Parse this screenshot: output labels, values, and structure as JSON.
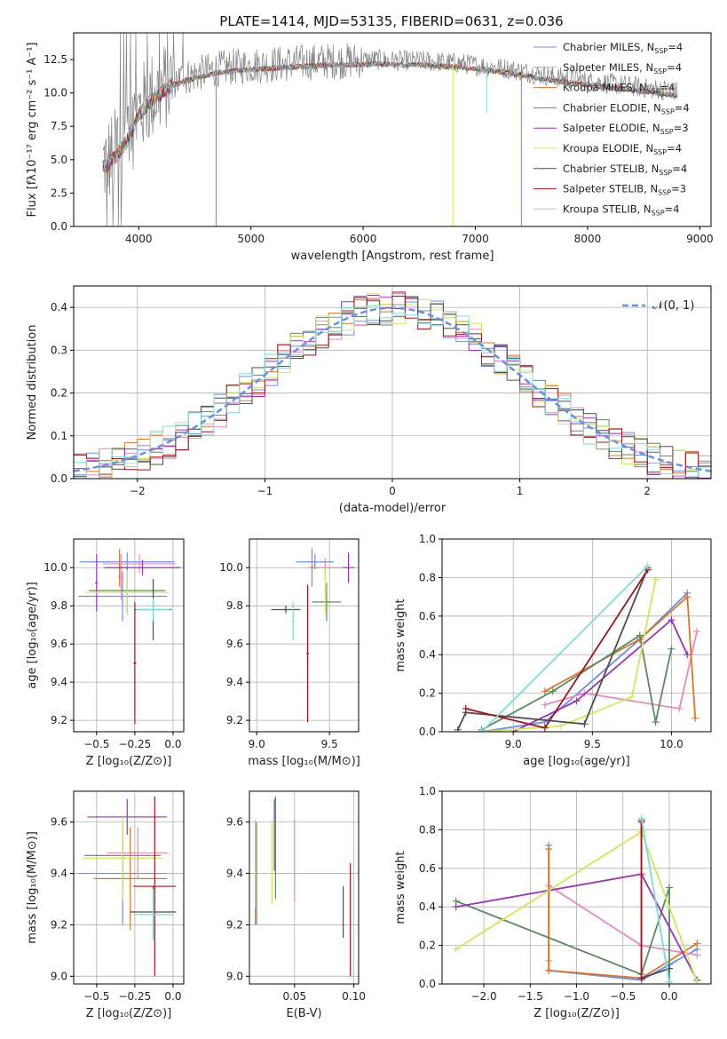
{
  "figure": {
    "title": "PLATE=1414, MJD=53135, FIBERID=0631, z=0.036"
  },
  "series_styles": [
    {
      "name": "Chabrier MILES, N$_{SSP}$=4",
      "label": "Chabrier MILES, N",
      "sub": "SSP",
      "suffix": "=4",
      "color": "#6b8fe6"
    },
    {
      "name": "Salpeter MILES, N$_{SSP}$=4",
      "label": "Salpeter MILES, N",
      "sub": "SSP",
      "suffix": "=4",
      "color": "#e68ac0"
    },
    {
      "name": "Kroupa MILES, N$_{SSP}$=4",
      "label": "Kroupa MILES, N",
      "sub": "SSP",
      "suffix": "=4",
      "color": "#d9762b"
    },
    {
      "name": "Chabrier ELODIE, N$_{SSP}$=4",
      "label": "Chabrier ELODIE, N",
      "sub": "SSP",
      "suffix": "=4",
      "color": "#5a8a64"
    },
    {
      "name": "Salpeter ELODIE, N$_{SSP}$=3",
      "label": "Salpeter ELODIE, N",
      "sub": "SSP",
      "suffix": "=3",
      "color": "#9b32b8"
    },
    {
      "name": "Kroupa ELODIE, N$_{SSP}$=4",
      "label": "Kroupa ELODIE, N",
      "sub": "SSP",
      "suffix": "=4",
      "color": "#cfe85a"
    },
    {
      "name": "Chabrier STELIB, N$_{SSP}$=4",
      "label": "Chabrier STELIB, N",
      "sub": "SSP",
      "suffix": "=4",
      "color": "#4d4d4d"
    },
    {
      "name": "Salpeter STELIB, N$_{SSP}$=3",
      "label": "Salpeter STELIB, N",
      "sub": "SSP",
      "suffix": "=3",
      "color": "#a3141a"
    },
    {
      "name": "Kroupa STELIB, N$_{SSP}$=4",
      "label": "Kroupa STELIB, N",
      "sub": "SSP",
      "suffix": "=4",
      "color": "#7fdbdb"
    }
  ],
  "chart_data": [
    {
      "id": "spectrum",
      "type": "line",
      "title": "PLATE=1414, MJD=53135, FIBERID=0631, z=0.036",
      "xlabel": "wavelength [Angstrom, rest frame]",
      "ylabel": "Flux [fλ10⁻¹⁷ erg cm⁻² s⁻¹ A⁻¹]",
      "xlim": [
        3420,
        9100
      ],
      "ylim": [
        0,
        14.5
      ],
      "xticks": [
        4000,
        5000,
        6000,
        7000,
        8000,
        9000
      ],
      "yticks": [
        0.0,
        2.5,
        5.0,
        7.5,
        10.0,
        12.5
      ],
      "ytick_labels": [
        "0.0",
        "2.5",
        "5.0",
        "7.5",
        "10.0",
        "12.5"
      ],
      "legend_position": "top-right",
      "data_color": "#808080",
      "continuum": {
        "x": [
          3700,
          3800,
          3900,
          4000,
          4100,
          4200,
          4300,
          4500,
          4700,
          4900,
          5100,
          5300,
          5500,
          5700,
          5900,
          6100,
          6300,
          6500,
          6700,
          6900,
          7100,
          7300,
          7500,
          7700,
          7900,
          8100,
          8300,
          8500,
          8700,
          8800
        ],
        "y": [
          4.8,
          5.6,
          6.8,
          8.6,
          9.6,
          10.3,
          10.9,
          11.4,
          11.8,
          12.0,
          12.1,
          12.2,
          12.3,
          12.4,
          12.4,
          12.5,
          12.4,
          12.4,
          12.3,
          12.2,
          12.0,
          11.8,
          11.5,
          11.2,
          11.0,
          10.8,
          10.6,
          10.4,
          10.2,
          10.1
        ]
      },
      "dropouts": [
        {
          "x": 4690,
          "bottom": 0.0,
          "color": "#d9762b"
        },
        {
          "x": 6800,
          "bottom": 0.0,
          "color": "#cfe85a"
        },
        {
          "x": 7100,
          "bottom": 8.5,
          "color": "#7fdbdb"
        },
        {
          "x": 7410,
          "bottom": 0.0,
          "color": "#d9762b"
        }
      ]
    },
    {
      "id": "residuals",
      "type": "line",
      "xlabel": "(data-model)/error",
      "ylabel": "Normed distribution",
      "xlim": [
        -2.5,
        2.5
      ],
      "ylim": [
        0,
        0.45
      ],
      "xticks": [
        -2,
        -1,
        0,
        1,
        2
      ],
      "xtick_labels": [
        "−2",
        "−1",
        "0",
        "1",
        "2"
      ],
      "yticks": [
        0.0,
        0.1,
        0.2,
        0.3,
        0.4
      ],
      "ytick_labels": [
        "0.0",
        "0.1",
        "0.2",
        "0.3",
        "0.4"
      ],
      "grid": true,
      "legend_position": "top-right",
      "gaussian_label": "𝒩(0, 1)",
      "gaussian_color": "#6b8fe6",
      "bin_width": 0.1
    },
    {
      "id": "age-vs-Z",
      "type": "scatter",
      "xlabel": "Z [log₁₀(Z/Z⊙)]",
      "ylabel": "age  [log₁₀(age/yr)]",
      "xlim": [
        -0.65,
        0.07
      ],
      "ylim": [
        9.14,
        10.15
      ],
      "xticks": [
        -0.5,
        -0.25,
        0.0
      ],
      "xtick_labels": [
        "−0.5",
        "−0.25",
        "0.0"
      ],
      "yticks": [
        9.2,
        9.4,
        9.6,
        9.8,
        10.0
      ],
      "ytick_labels": [
        "9.2",
        "9.4",
        "9.6",
        "9.8",
        "10.0"
      ],
      "grid": true,
      "points": [
        {
          "s": 0,
          "x": -0.33,
          "y": 9.85,
          "xerr": 0.29,
          "yerr": 0.13
        },
        {
          "s": 0,
          "x": -0.3,
          "y": 10.03,
          "xerr": 0.31,
          "yerr": 0.05
        },
        {
          "s": 1,
          "x": -0.22,
          "y": 10.02,
          "xerr": 0.24,
          "yerr": 0.05
        },
        {
          "s": 1,
          "x": -0.34,
          "y": 9.95,
          "xerr": 0.02,
          "yerr": 0.12
        },
        {
          "s": 2,
          "x": -0.35,
          "y": 10.0,
          "xerr": 0.02,
          "yerr": 0.1
        },
        {
          "s": 3,
          "x": -0.3,
          "y": 9.88,
          "xerr": 0.25,
          "yerr": 0.12
        },
        {
          "s": 4,
          "x": -0.5,
          "y": 9.92,
          "xerr": 0.01,
          "yerr": 0.15
        },
        {
          "s": 4,
          "x": -0.2,
          "y": 10.0,
          "xerr": 0.25,
          "yerr": 0.04
        },
        {
          "s": 5,
          "x": -0.3,
          "y": 9.87,
          "xerr": 0.27,
          "yerr": 0.12
        },
        {
          "s": 6,
          "x": -0.13,
          "y": 9.78,
          "xerr": 0.12,
          "yerr": 0.16
        },
        {
          "s": 7,
          "x": -0.25,
          "y": 9.5,
          "xerr": 0.01,
          "yerr": 0.32
        },
        {
          "s": 8,
          "x": -0.13,
          "y": 9.78,
          "xerr": 0.11,
          "yerr": 0.06
        }
      ]
    },
    {
      "id": "age-vs-mass",
      "type": "scatter",
      "xlabel": "mass [log₁₀(M/M⊙)]",
      "ylabel": "",
      "xlim": [
        8.95,
        9.7
      ],
      "ylim": [
        9.14,
        10.15
      ],
      "xticks": [
        9.0,
        9.5
      ],
      "xtick_labels": [
        "9.0",
        "9.5"
      ],
      "yticks": [
        9.2,
        9.4,
        9.6,
        9.8,
        10.0
      ],
      "ytick_labels": [
        "9.2",
        "9.4",
        "9.6",
        "9.8",
        "10.0"
      ],
      "grid": true,
      "points": [
        {
          "s": 0,
          "x": 9.4,
          "y": 10.03,
          "xerr": 0.13,
          "yerr": 0.04
        },
        {
          "s": 1,
          "x": 9.47,
          "y": 10.0,
          "xerr": 0.12,
          "yerr": 0.05
        },
        {
          "s": 2,
          "x": 9.38,
          "y": 10.0,
          "xerr": 0.01,
          "yerr": 0.1
        },
        {
          "s": 3,
          "x": 9.48,
          "y": 9.82,
          "xerr": 0.1,
          "yerr": 0.1
        },
        {
          "s": 4,
          "x": 9.63,
          "y": 10.0,
          "xerr": 0.04,
          "yerr": 0.08
        },
        {
          "s": 5,
          "x": 9.47,
          "y": 9.88,
          "xerr": 0.01,
          "yerr": 0.12
        },
        {
          "s": 6,
          "x": 9.2,
          "y": 9.78,
          "xerr": 0.1,
          "yerr": 0.02
        },
        {
          "s": 7,
          "x": 9.35,
          "y": 9.55,
          "xerr": 0.01,
          "yerr": 0.36
        },
        {
          "s": 8,
          "x": 9.25,
          "y": 9.72,
          "xerr": 0.01,
          "yerr": 0.1
        }
      ]
    },
    {
      "id": "mass-weight-vs-age",
      "type": "line",
      "xlabel": "age  [log₁₀(age/yr)]",
      "ylabel": "mass weight",
      "xlim": [
        8.55,
        10.25
      ],
      "ylim": [
        0,
        1.0
      ],
      "xticks": [
        9.0,
        9.5,
        10.0
      ],
      "xtick_labels": [
        "9.0",
        "9.5",
        "10.0"
      ],
      "yticks": [
        0.0,
        0.2,
        0.4,
        0.6,
        0.8,
        1.0
      ],
      "ytick_labels": [
        "0.0",
        "0.2",
        "0.4",
        "0.6",
        "0.8",
        "1.0"
      ],
      "grid": true,
      "series": [
        {
          "s": 0,
          "x": [
            8.8,
            9.2,
            9.8,
            10.1
          ],
          "y": [
            0.0,
            0.05,
            0.48,
            0.72
          ]
        },
        {
          "s": 1,
          "x": [
            9.2,
            9.45,
            10.05,
            10.16
          ],
          "y": [
            0.14,
            0.2,
            0.12,
            0.52
          ]
        },
        {
          "s": 2,
          "x": [
            9.2,
            9.8,
            10.1,
            10.15
          ],
          "y": [
            0.21,
            0.48,
            0.7,
            0.07
          ]
        },
        {
          "s": 3,
          "x": [
            8.8,
            9.25,
            9.8,
            9.9,
            10.0
          ],
          "y": [
            0.01,
            0.21,
            0.5,
            0.05,
            0.43
          ]
        },
        {
          "s": 4,
          "x": [
            9.0,
            9.4,
            10.0,
            10.1
          ],
          "y": [
            0.0,
            0.16,
            0.58,
            0.4
          ]
        },
        {
          "s": 5,
          "x": [
            8.8,
            9.3,
            9.75,
            9.9
          ],
          "y": [
            0.0,
            0.03,
            0.18,
            0.79
          ]
        },
        {
          "s": 6,
          "x": [
            8.65,
            8.7,
            9.45,
            9.85
          ],
          "y": [
            0.01,
            0.1,
            0.04,
            0.85
          ]
        },
        {
          "s": 7,
          "x": [
            8.7,
            9.2,
            9.85
          ],
          "y": [
            0.12,
            0.02,
            0.84
          ]
        },
        {
          "s": 8,
          "x": [
            8.8,
            9.85
          ],
          "y": [
            0.0,
            0.86
          ]
        }
      ]
    },
    {
      "id": "mass-vs-Z",
      "type": "scatter",
      "xlabel": "Z [log₁₀(Z/Z⊙)]",
      "ylabel": "mass [log₁₀(M/M⊙)]",
      "xlim": [
        -0.65,
        0.07
      ],
      "ylim": [
        8.97,
        9.72
      ],
      "xticks": [
        -0.5,
        -0.25,
        0.0
      ],
      "xtick_labels": [
        "−0.5",
        "−0.25",
        "0.0"
      ],
      "yticks": [
        9.0,
        9.2,
        9.4,
        9.6
      ],
      "ytick_labels": [
        "9.0",
        "9.2",
        "9.4",
        "9.6"
      ],
      "grid": true,
      "points": [
        {
          "s": 0,
          "x": -0.33,
          "y": 9.4,
          "xerr": 0.29,
          "yerr": 0.2
        },
        {
          "s": 1,
          "x": -0.23,
          "y": 9.48,
          "xerr": 0.2,
          "yerr": 0.1
        },
        {
          "s": 2,
          "x": -0.28,
          "y": 9.38,
          "xerr": 0.24,
          "yerr": 0.2
        },
        {
          "s": 3,
          "x": -0.33,
          "y": 9.47,
          "xerr": 0.25,
          "yerr": 0.1
        },
        {
          "s": 4,
          "x": -0.3,
          "y": 9.62,
          "xerr": 0.26,
          "yerr": 0.07
        },
        {
          "s": 5,
          "x": -0.33,
          "y": 9.46,
          "xerr": 0.26,
          "yerr": 0.16
        },
        {
          "s": 6,
          "x": -0.13,
          "y": 9.25,
          "xerr": 0.15,
          "yerr": 0.1
        },
        {
          "s": 7,
          "x": -0.12,
          "y": 9.35,
          "xerr": 0.14,
          "yerr": 0.35
        },
        {
          "s": 8,
          "x": -0.13,
          "y": 9.24,
          "xerr": 0.13,
          "yerr": 0.1
        }
      ]
    },
    {
      "id": "mass-vs-ebv",
      "type": "scatter",
      "xlabel": "E(B-V)",
      "ylabel": "",
      "xlim": [
        0.012,
        0.104
      ],
      "ylim": [
        8.97,
        9.72
      ],
      "xticks": [
        0.05,
        0.1
      ],
      "xtick_labels": [
        "0.05",
        "0.10"
      ],
      "yticks": [
        9.0,
        9.2,
        9.4,
        9.6
      ],
      "ytick_labels": [
        "9.0",
        "9.2",
        "9.4",
        "9.6"
      ],
      "grid": true,
      "points": [
        {
          "s": 0,
          "x": 0.017,
          "y": 9.4,
          "xerr": 0.0,
          "yerr": 0.2
        },
        {
          "s": 1,
          "x": 0.05,
          "y": 9.45,
          "xerr": 0.0,
          "yerr": 0.16
        },
        {
          "s": 2,
          "x": 0.018,
          "y": 9.4,
          "xerr": 0.0,
          "yerr": 0.2
        },
        {
          "s": 3,
          "x": 0.034,
          "y": 9.5,
          "xerr": 0.0,
          "yerr": 0.2
        },
        {
          "s": 4,
          "x": 0.033,
          "y": 9.55,
          "xerr": 0.0,
          "yerr": 0.14
        },
        {
          "s": 5,
          "x": 0.031,
          "y": 9.44,
          "xerr": 0.0,
          "yerr": 0.16
        },
        {
          "s": 6,
          "x": 0.091,
          "y": 9.25,
          "xerr": 0.0,
          "yerr": 0.1
        },
        {
          "s": 7,
          "x": 0.097,
          "y": 9.22,
          "xerr": 0.0,
          "yerr": 0.22
        },
        {
          "s": 8,
          "x": 0.017,
          "y": 9.44,
          "xerr": 0.0,
          "yerr": 0.17
        }
      ]
    },
    {
      "id": "mass-weight-vs-Z",
      "type": "line",
      "xlabel": "Z [log₁₀(Z/Z⊙)]",
      "ylabel": "mass weight",
      "xlim": [
        -2.45,
        0.45
      ],
      "ylim": [
        0,
        1.0
      ],
      "xticks": [
        -2.0,
        -1.5,
        -1.0,
        -0.5,
        0.0
      ],
      "xtick_labels": [
        "−2.0",
        "−1.5",
        "−1.0",
        "−0.5",
        "0.0"
      ],
      "yticks": [
        0.0,
        0.2,
        0.4,
        0.6,
        0.8,
        1.0
      ],
      "ytick_labels": [
        "0.0",
        "0.2",
        "0.4",
        "0.6",
        "0.8",
        "1.0"
      ],
      "grid": true,
      "series": [
        {
          "s": 0,
          "x": [
            -1.3,
            -1.3,
            -0.3,
            0.0,
            0.3
          ],
          "y": [
            0.72,
            0.07,
            0.02,
            0.1,
            0.18
          ]
        },
        {
          "s": 1,
          "x": [
            -1.3,
            -1.3,
            -0.3,
            0.3
          ],
          "y": [
            0.12,
            0.51,
            0.2,
            0.15
          ]
        },
        {
          "s": 2,
          "x": [
            -1.3,
            -1.3,
            -0.3,
            0.3
          ],
          "y": [
            0.7,
            0.07,
            0.03,
            0.21
          ]
        },
        {
          "s": 3,
          "x": [
            -2.3,
            -0.3,
            0.0,
            0.0
          ],
          "y": [
            0.43,
            0.05,
            0.5,
            0.01
          ]
        },
        {
          "s": 4,
          "x": [
            -2.3,
            -0.3,
            0.3
          ],
          "y": [
            0.4,
            0.57,
            0.02
          ]
        },
        {
          "s": 5,
          "x": [
            -2.3,
            -0.3,
            0.3
          ],
          "y": [
            0.18,
            0.79,
            0.01
          ]
        },
        {
          "s": 6,
          "x": [
            -0.3,
            -0.3,
            0.0
          ],
          "y": [
            0.85,
            0.03,
            0.08
          ]
        },
        {
          "s": 7,
          "x": [
            -0.3,
            -0.3
          ],
          "y": [
            0.03,
            0.84
          ]
        },
        {
          "s": 8,
          "x": [
            -0.3,
            0.0
          ],
          "y": [
            0.86,
            0.01
          ]
        }
      ]
    }
  ]
}
